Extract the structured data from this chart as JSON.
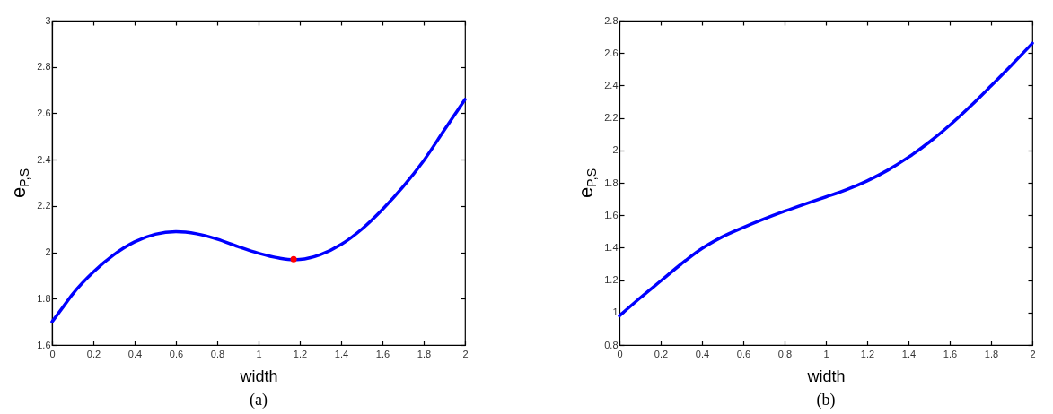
{
  "chart_data": [
    {
      "type": "line",
      "xlabel": "width",
      "ylabel": "e$_{P,S}$",
      "annotations": [
        "(a)"
      ],
      "xlim": [
        0,
        2
      ],
      "ylim": [
        1.6,
        3
      ],
      "xticks": [
        0,
        0.2,
        0.4,
        0.6,
        0.8,
        1,
        1.2,
        1.4,
        1.6,
        1.8,
        2
      ],
      "yticks": [
        1.6,
        1.8,
        2,
        2.2,
        2.4,
        2.6,
        2.8,
        3
      ],
      "series": [
        {
          "color": "#0000ff",
          "line_style": "solid",
          "x": [
            0,
            0.05,
            0.1,
            0.2,
            0.3,
            0.4,
            0.5,
            0.6,
            0.7,
            0.8,
            0.9,
            1,
            1.1,
            1.17,
            1.2,
            1.3,
            1.4,
            1.5,
            1.6,
            1.7,
            1.8,
            1.9,
            2
          ],
          "values": [
            1.7,
            1.76,
            1.82,
            1.915,
            1.99,
            2.045,
            2.078,
            2.089,
            2.08,
            2.057,
            2.025,
            1.996,
            1.975,
            1.968,
            1.969,
            1.99,
            2.034,
            2.1,
            2.185,
            2.283,
            2.396,
            2.528,
            2.66
          ]
        },
        {
          "type": "scatter",
          "color": "#ff0000",
          "marker": "circle",
          "x": [
            1.17
          ],
          "values": [
            1.97
          ]
        }
      ]
    },
    {
      "type": "line",
      "xlabel": "width",
      "ylabel": "e$_{P,S}$",
      "annotations": [
        "(b)"
      ],
      "xlim": [
        0,
        2
      ],
      "ylim": [
        0.8,
        2.8
      ],
      "xticks": [
        0,
        0.2,
        0.4,
        0.6,
        0.8,
        1,
        1.2,
        1.4,
        1.6,
        1.8,
        2
      ],
      "yticks": [
        0.8,
        1,
        1.2,
        1.4,
        1.6,
        1.8,
        2,
        2.2,
        2.4,
        2.6,
        2.8
      ],
      "series": [
        {
          "color": "#0000ff",
          "line_style": "solid",
          "x": [
            0,
            0.1,
            0.2,
            0.3,
            0.4,
            0.5,
            0.6,
            0.7,
            0.8,
            0.9,
            1,
            1.1,
            1.2,
            1.3,
            1.4,
            1.5,
            1.6,
            1.7,
            1.8,
            1.9,
            2
          ],
          "values": [
            0.98,
            1.09,
            1.195,
            1.3,
            1.395,
            1.468,
            1.525,
            1.577,
            1.625,
            1.67,
            1.713,
            1.758,
            1.812,
            1.878,
            1.958,
            2.05,
            2.155,
            2.272,
            2.398,
            2.527,
            2.66
          ]
        }
      ]
    }
  ]
}
